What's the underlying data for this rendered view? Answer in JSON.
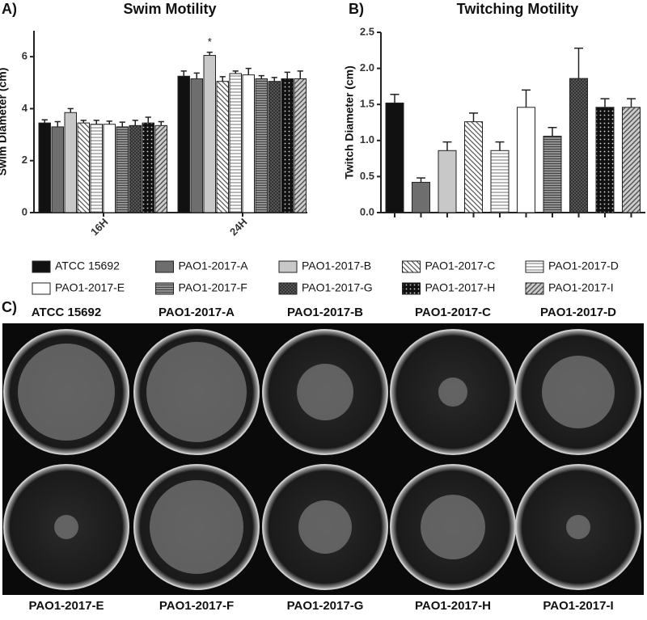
{
  "chart_data": [
    {
      "type": "bar",
      "panel": "A)",
      "title": "Swim Motility",
      "y_label": "Swim Diameter (cm)",
      "categories": [
        "16H",
        "24H"
      ],
      "series": [
        {
          "name": "ATCC 15692",
          "color": "#111111",
          "pattern": "solid",
          "values": [
            3.45,
            5.25
          ],
          "errors": [
            0.12,
            0.2
          ]
        },
        {
          "name": "PAO1-2017-A",
          "color": "#6e6e6e",
          "pattern": "solid",
          "values": [
            3.3,
            5.15
          ],
          "errors": [
            0.2,
            0.22
          ]
        },
        {
          "name": "PAO1-2017-B",
          "color": "#c8c8c8",
          "pattern": "solid",
          "values": [
            3.85,
            6.05
          ],
          "errors": [
            0.15,
            0.12
          ]
        },
        {
          "name": "PAO1-2017-C",
          "color": "#555555",
          "pattern": "diagonal",
          "values": [
            3.45,
            5.05
          ],
          "errors": [
            0.1,
            0.18
          ]
        },
        {
          "name": "PAO1-2017-D",
          "color": "#888888",
          "pattern": "horizontal",
          "values": [
            3.4,
            5.35
          ],
          "errors": [
            0.15,
            0.1
          ]
        },
        {
          "name": "PAO1-2017-E",
          "color": "#ffffff",
          "pattern": "solid",
          "values": [
            3.4,
            5.3
          ],
          "errors": [
            0.12,
            0.25
          ]
        },
        {
          "name": "PAO1-2017-F",
          "color": "#666666",
          "pattern": "hdense",
          "values": [
            3.3,
            5.15
          ],
          "errors": [
            0.18,
            0.12
          ]
        },
        {
          "name": "PAO1-2017-G",
          "color": "#444444",
          "pattern": "cross",
          "values": [
            3.35,
            5.05
          ],
          "errors": [
            0.2,
            0.15
          ]
        },
        {
          "name": "PAO1-2017-H",
          "color": "#111111",
          "pattern": "dots",
          "values": [
            3.45,
            5.15
          ],
          "errors": [
            0.22,
            0.25
          ]
        },
        {
          "name": "PAO1-2017-I",
          "color": "#888888",
          "pattern": "diagonal2",
          "values": [
            3.35,
            5.15
          ],
          "errors": [
            0.15,
            0.3
          ]
        }
      ],
      "ylim": [
        0,
        7
      ],
      "yticks": [
        0,
        2,
        4,
        6
      ],
      "annotations": [
        {
          "text": "*"
        }
      ]
    },
    {
      "type": "bar",
      "panel": "B)",
      "title": "Twitching Motility",
      "y_label": "Twitch Diameter (cm)",
      "values": [
        1.52,
        0.42,
        0.86,
        1.26,
        0.86,
        1.46,
        1.06,
        1.86,
        1.46,
        1.46
      ],
      "errors": [
        0.12,
        0.06,
        0.12,
        0.12,
        0.12,
        0.24,
        0.12,
        0.42,
        0.12,
        0.12
      ],
      "ylim": [
        0,
        2.5
      ],
      "yticks": [
        {
          "value": 0,
          "label": "0.0"
        },
        0.5,
        {
          "value": 1,
          "label": "1.0"
        },
        1.5,
        {
          "value": 2,
          "label": "2.0"
        },
        2.5
      ]
    }
  ],
  "panel_c": {
    "label": "C)",
    "plates": [
      "ATCC 15692",
      "PAO1-2017-A",
      "PAO1-2017-B",
      "PAO1-2017-C",
      "PAO1-2017-D",
      "PAO1-2017-E",
      "PAO1-2017-F",
      "PAO1-2017-G",
      "PAO1-2017-H",
      "PAO1-2017-I"
    ]
  }
}
